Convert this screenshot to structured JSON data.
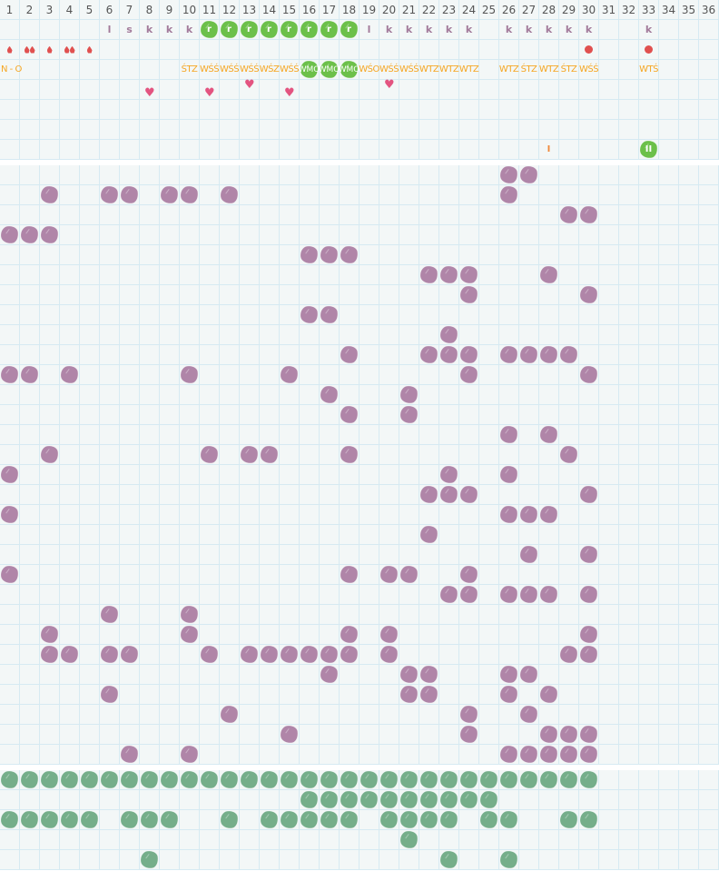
{
  "colors": {
    "grid_bg": "#f3f7f7",
    "grid_line": "#d6eaf2",
    "purple_mark": "#b085a8",
    "green_mark": "#6cc04a",
    "dark_green_mark": "#75ae8a",
    "code_text": "#f5a623",
    "letter_text": "#a27a9a",
    "drop": "#e0504f",
    "heart": "#e35480"
  },
  "header": {
    "days": [
      "1",
      "2",
      "3",
      "4",
      "5",
      "6",
      "7",
      "8",
      "9",
      "10",
      "11",
      "12",
      "13",
      "14",
      "15",
      "16",
      "17",
      "18",
      "19",
      "20",
      "21",
      "22",
      "23",
      "24",
      "25",
      "26",
      "27",
      "28",
      "29",
      "30",
      "31",
      "32",
      "33",
      "34",
      "35",
      "36"
    ],
    "letters": [
      {
        "col": 6,
        "text": "l"
      },
      {
        "col": 7,
        "text": "s"
      },
      {
        "col": 8,
        "text": "k"
      },
      {
        "col": 9,
        "text": "k"
      },
      {
        "col": 10,
        "text": "k"
      },
      {
        "col": 11,
        "text": "r",
        "marked": true
      },
      {
        "col": 12,
        "text": "r",
        "marked": true
      },
      {
        "col": 13,
        "text": "r",
        "marked": true
      },
      {
        "col": 14,
        "text": "r",
        "marked": true
      },
      {
        "col": 15,
        "text": "r",
        "marked": true
      },
      {
        "col": 16,
        "text": "r",
        "marked": true
      },
      {
        "col": 17,
        "text": "r",
        "marked": true
      },
      {
        "col": 18,
        "text": "r",
        "marked": true
      },
      {
        "col": 19,
        "text": "l"
      },
      {
        "col": 20,
        "text": "k"
      },
      {
        "col": 21,
        "text": "k"
      },
      {
        "col": 22,
        "text": "k"
      },
      {
        "col": 23,
        "text": "k"
      },
      {
        "col": 24,
        "text": "k"
      },
      {
        "col": 26,
        "text": "k"
      },
      {
        "col": 27,
        "text": "k"
      },
      {
        "col": 28,
        "text": "k"
      },
      {
        "col": 29,
        "text": "k"
      },
      {
        "col": 30,
        "text": "k"
      },
      {
        "col": 33,
        "text": "k"
      }
    ],
    "drops": [
      {
        "col": 1,
        "count": 1
      },
      {
        "col": 2,
        "count": 2
      },
      {
        "col": 3,
        "count": 1
      },
      {
        "col": 4,
        "count": 2
      },
      {
        "col": 5,
        "count": 1
      }
    ],
    "dots": [
      30,
      33
    ],
    "codes": [
      {
        "col": 1,
        "text": "N - O"
      },
      {
        "col": 10,
        "text": "ŚTZ"
      },
      {
        "col": 11,
        "text": "WŚŚ"
      },
      {
        "col": 12,
        "text": "WŚŚ"
      },
      {
        "col": 13,
        "text": "WŚŚ"
      },
      {
        "col": 14,
        "text": "WŚZ"
      },
      {
        "col": 15,
        "text": "WŚŚ"
      },
      {
        "col": 16,
        "text": "WMO",
        "marked": true
      },
      {
        "col": 17,
        "text": "WMO",
        "marked": true
      },
      {
        "col": 18,
        "text": "WMO",
        "marked": true
      },
      {
        "col": 19,
        "text": "WŚO"
      },
      {
        "col": 20,
        "text": "WŚŚ"
      },
      {
        "col": 21,
        "text": "WŚŚ"
      },
      {
        "col": 22,
        "text": "WTZ"
      },
      {
        "col": 23,
        "text": "WTZ"
      },
      {
        "col": 24,
        "text": "WTZ"
      },
      {
        "col": 26,
        "text": "WTZ"
      },
      {
        "col": 27,
        "text": "ŚTZ"
      },
      {
        "col": 28,
        "text": "WTZ"
      },
      {
        "col": 29,
        "text": "ŚTZ"
      },
      {
        "col": 30,
        "text": "WŚŚ"
      },
      {
        "col": 33,
        "text": "WTŚ"
      }
    ],
    "hearts": [
      {
        "col": 8,
        "pos": "low"
      },
      {
        "col": 11,
        "pos": "low"
      },
      {
        "col": 13,
        "pos": "high"
      },
      {
        "col": 15,
        "pos": "low"
      },
      {
        "col": 20,
        "pos": "high"
      }
    ],
    "ticks": [
      {
        "col": 28,
        "text": "I"
      },
      {
        "col": 33,
        "text": "II",
        "marked": true
      }
    ]
  },
  "main": {
    "rows": [
      [
        26,
        27
      ],
      [
        3,
        6,
        7,
        9,
        10,
        12,
        26
      ],
      [
        29,
        30
      ],
      [
        1,
        2,
        3
      ],
      [
        16,
        17,
        18
      ],
      [
        22,
        23,
        24,
        28
      ],
      [
        24,
        30
      ],
      [
        16,
        17
      ],
      [
        23
      ],
      [
        18,
        22,
        23,
        24,
        26,
        27,
        28,
        29
      ],
      [
        1,
        2,
        4,
        10,
        15,
        24,
        30
      ],
      [
        17,
        21
      ],
      [
        18,
        21
      ],
      [
        26,
        28
      ],
      [
        3,
        11,
        13,
        14,
        18,
        29
      ],
      [
        1,
        23,
        26
      ],
      [
        22,
        23,
        24,
        30
      ],
      [
        1,
        26,
        27,
        28
      ],
      [
        22
      ],
      [
        27,
        30
      ],
      [
        1,
        18,
        20,
        21,
        24
      ],
      [
        23,
        24,
        26,
        27,
        28,
        30
      ],
      [
        6,
        10
      ],
      [
        3,
        10,
        18,
        20,
        30
      ],
      [
        3,
        4,
        6,
        7,
        11,
        13,
        14,
        15,
        16,
        17,
        18,
        20,
        29,
        30
      ],
      [
        17,
        21,
        22,
        26,
        27
      ],
      [
        6,
        21,
        22,
        26,
        28
      ],
      [
        12,
        24,
        27
      ],
      [
        15,
        24,
        28,
        29,
        30
      ],
      [
        7,
        10,
        26,
        27,
        28,
        29,
        30
      ]
    ]
  },
  "bottom": {
    "rows": [
      [
        1,
        2,
        3,
        4,
        5,
        6,
        7,
        8,
        9,
        10,
        11,
        12,
        13,
        14,
        15,
        16,
        17,
        18,
        19,
        20,
        21,
        22,
        23,
        24,
        25,
        26,
        27,
        28,
        29,
        30
      ],
      [
        16,
        17,
        18,
        19,
        20,
        21,
        22,
        23,
        24,
        25
      ],
      [
        1,
        2,
        3,
        4,
        5,
        7,
        8,
        9,
        12,
        14,
        15,
        16,
        17,
        18,
        20,
        21,
        22,
        23,
        25,
        26,
        29,
        30
      ],
      [
        21
      ],
      [
        8,
        23,
        26
      ]
    ]
  }
}
